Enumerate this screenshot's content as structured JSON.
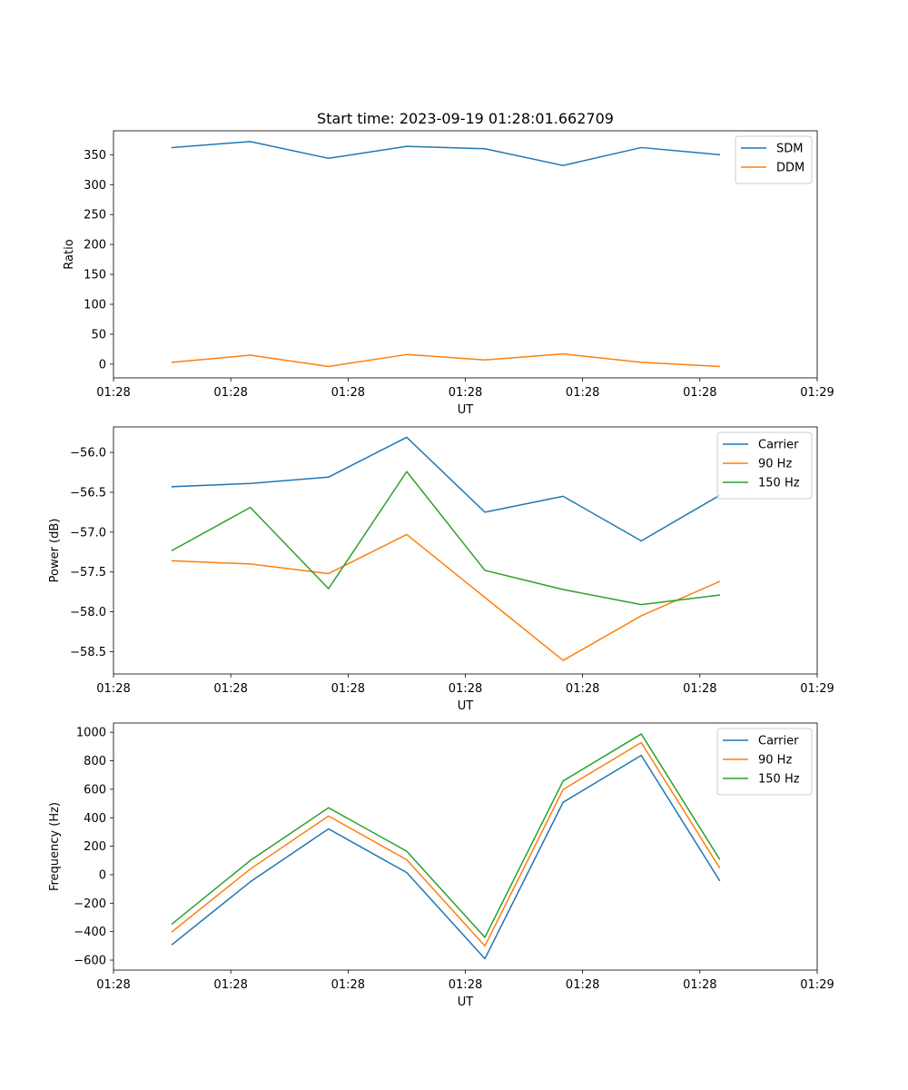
{
  "title": "Start time: 2023-09-19 01:28:01.662709",
  "colors": {
    "blue": "#1f77b4",
    "orange": "#ff7f0e",
    "green": "#2ca02c"
  },
  "chart_data": [
    {
      "type": "line",
      "title": "Start time: 2023-09-19 01:28:01.662709",
      "xlabel": "UT",
      "ylabel": "Ratio",
      "xlim": [
        0,
        9
      ],
      "ylim": [
        -23,
        390
      ],
      "x": [
        0.75,
        1.75,
        2.75,
        3.75,
        4.75,
        5.75,
        6.75,
        7.75
      ],
      "x_ticks": [
        {
          "pos": 0,
          "label": "01:28"
        },
        {
          "pos": 1.5,
          "label": "01:28"
        },
        {
          "pos": 3,
          "label": "01:28"
        },
        {
          "pos": 4.5,
          "label": "01:28"
        },
        {
          "pos": 6,
          "label": "01:28"
        },
        {
          "pos": 7.5,
          "label": "01:28"
        },
        {
          "pos": 9,
          "label": "01:29"
        }
      ],
      "y_ticks": [
        0,
        50,
        100,
        150,
        200,
        250,
        300,
        350
      ],
      "legend_position": "top-right",
      "series": [
        {
          "name": "SDM",
          "color": "#1f77b4",
          "values": [
            362,
            372,
            344,
            364,
            360,
            332,
            362,
            350
          ]
        },
        {
          "name": "DDM",
          "color": "#ff7f0e",
          "values": [
            3,
            15,
            -4,
            16,
            7,
            17,
            3,
            -4
          ]
        }
      ]
    },
    {
      "type": "line",
      "title": "",
      "xlabel": "UT",
      "ylabel": "Power (dB)",
      "xlim": [
        0,
        9
      ],
      "ylim": [
        -58.78,
        -55.68
      ],
      "x": [
        0.75,
        1.75,
        2.75,
        3.75,
        4.75,
        5.75,
        6.75,
        7.75
      ],
      "x_ticks": [
        {
          "pos": 0,
          "label": "01:28"
        },
        {
          "pos": 1.5,
          "label": "01:28"
        },
        {
          "pos": 3,
          "label": "01:28"
        },
        {
          "pos": 4.5,
          "label": "01:28"
        },
        {
          "pos": 6,
          "label": "01:28"
        },
        {
          "pos": 7.5,
          "label": "01:28"
        },
        {
          "pos": 9,
          "label": "01:29"
        }
      ],
      "y_ticks": [
        -58.5,
        -58.0,
        -57.5,
        -57.0,
        -56.5,
        -56.0
      ],
      "y_tick_labels": [
        "−58.5",
        "−58.0",
        "−57.5",
        "−57.0",
        "−56.5",
        "−56.0"
      ],
      "legend_position": "top-right",
      "series": [
        {
          "name": "Carrier",
          "color": "#1f77b4",
          "values": [
            -56.43,
            -56.39,
            -56.31,
            -55.81,
            -56.75,
            -56.55,
            -57.11,
            -56.54
          ]
        },
        {
          "name": "90 Hz",
          "color": "#ff7f0e",
          "values": [
            -57.36,
            -57.4,
            -57.52,
            -57.03,
            -57.82,
            -58.61,
            -58.05,
            -57.62
          ]
        },
        {
          "name": "150 Hz",
          "color": "#2ca02c",
          "values": [
            -57.23,
            -56.69,
            -57.71,
            -56.24,
            -57.48,
            -57.72,
            -57.91,
            -57.79
          ]
        }
      ]
    },
    {
      "type": "line",
      "title": "",
      "xlabel": "UT",
      "ylabel": "Frequency (Hz)",
      "xlim": [
        0,
        9
      ],
      "ylim": [
        -670,
        1065
      ],
      "x": [
        0.75,
        1.75,
        2.75,
        3.75,
        4.75,
        5.75,
        6.75,
        7.75
      ],
      "x_ticks": [
        {
          "pos": 0,
          "label": "01:28"
        },
        {
          "pos": 1.5,
          "label": "01:28"
        },
        {
          "pos": 3,
          "label": "01:28"
        },
        {
          "pos": 4.5,
          "label": "01:28"
        },
        {
          "pos": 6,
          "label": "01:28"
        },
        {
          "pos": 7.5,
          "label": "01:28"
        },
        {
          "pos": 9,
          "label": "01:29"
        }
      ],
      "y_ticks": [
        -600,
        -400,
        -200,
        0,
        200,
        400,
        600,
        800,
        1000
      ],
      "y_tick_labels": [
        "−600",
        "−400",
        "−200",
        "0",
        "200",
        "400",
        "600",
        "800",
        "1000"
      ],
      "legend_position": "top-right",
      "series": [
        {
          "name": "Carrier",
          "color": "#1f77b4",
          "values": [
            -490,
            -50,
            322,
            15,
            -590,
            508,
            838,
            -40
          ]
        },
        {
          "name": "90 Hz",
          "color": "#ff7f0e",
          "values": [
            -400,
            40,
            412,
            105,
            -500,
            598,
            928,
            50
          ]
        },
        {
          "name": "150 Hz",
          "color": "#2ca02c",
          "values": [
            -345,
            100,
            470,
            165,
            -440,
            658,
            988,
            110
          ]
        }
      ]
    }
  ]
}
